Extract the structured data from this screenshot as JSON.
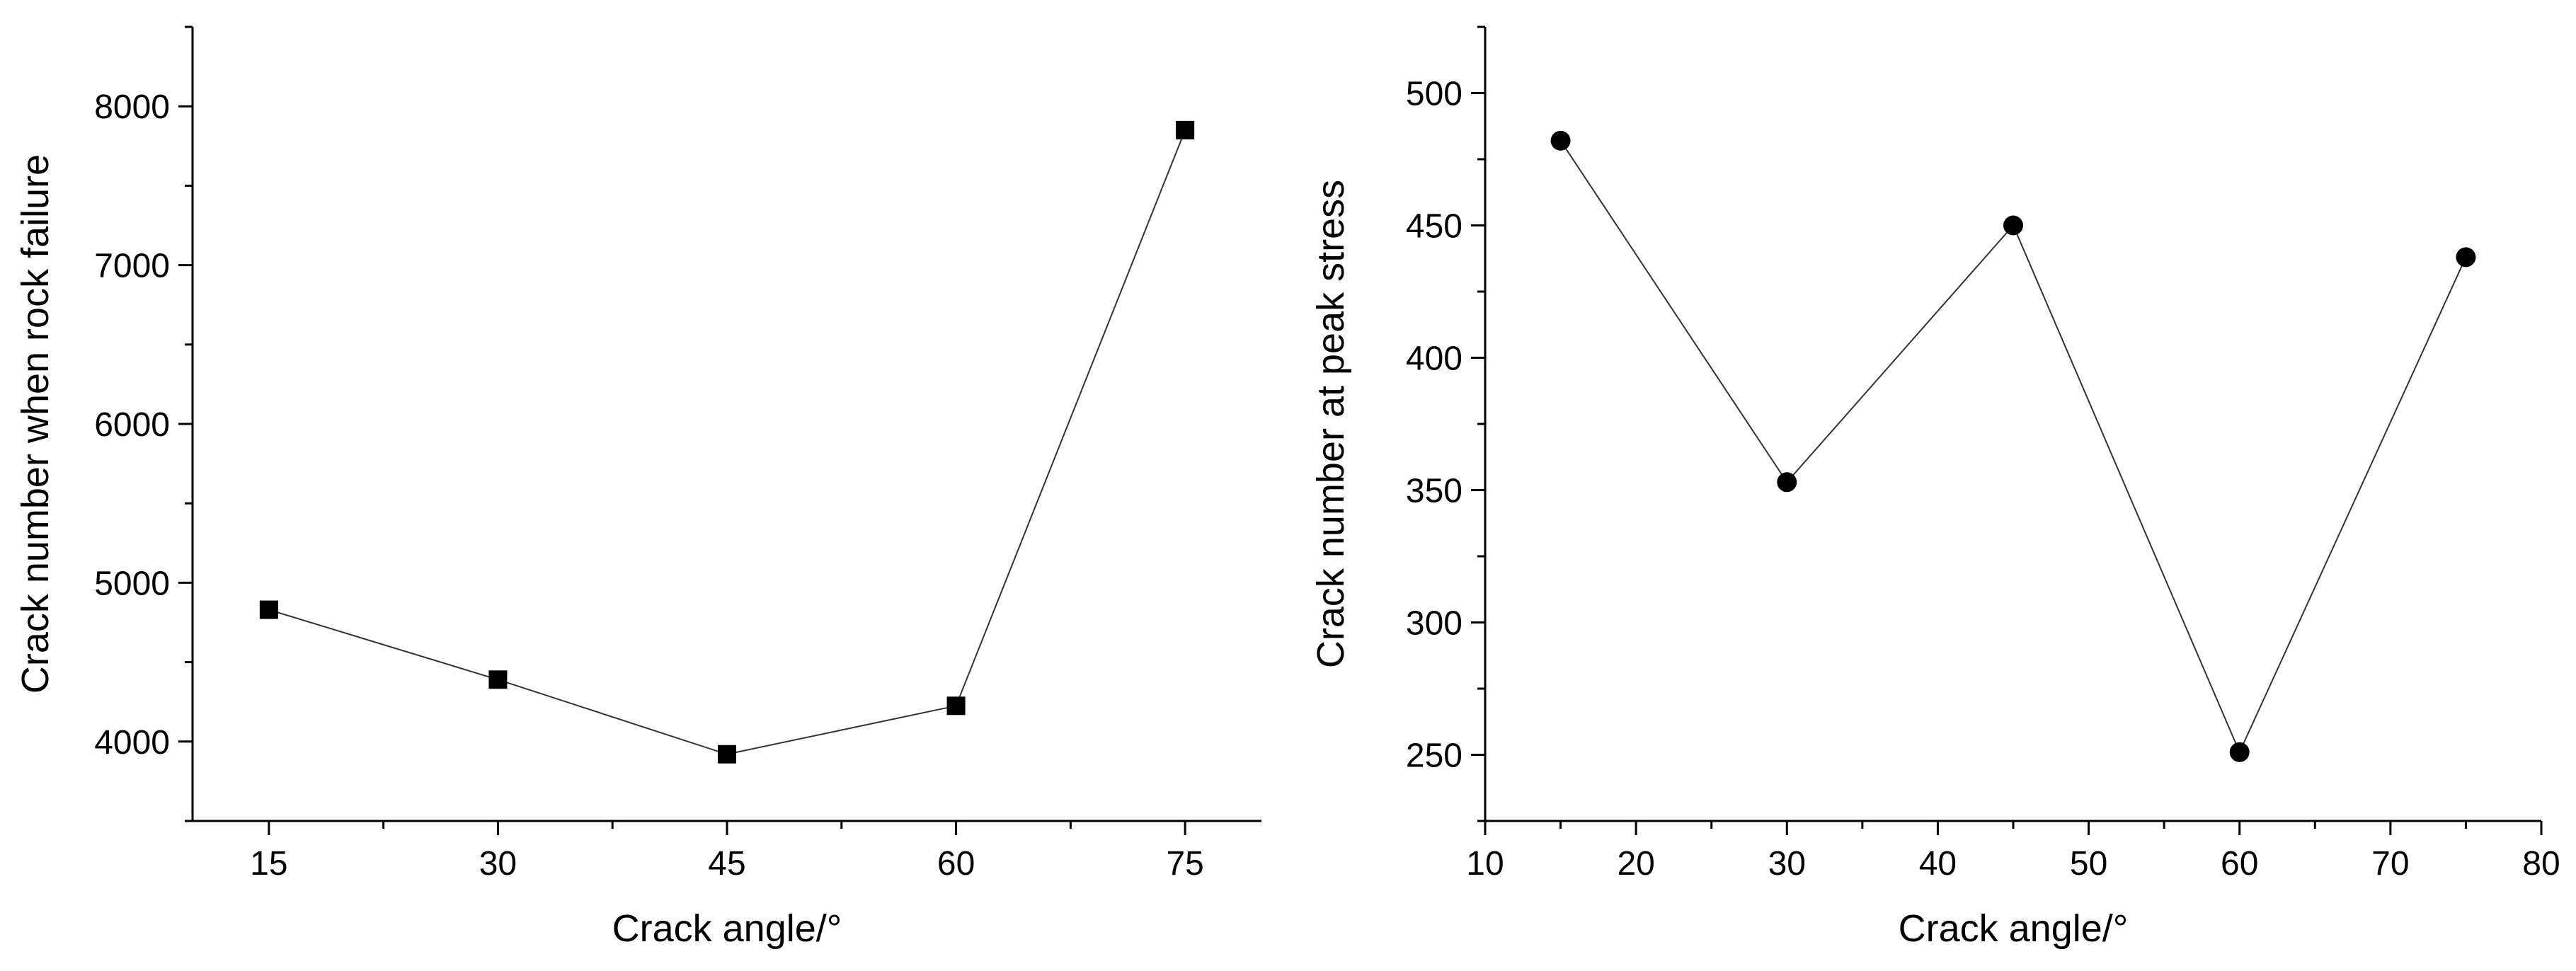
{
  "chart_data": [
    {
      "type": "line",
      "xlabel": "Crack angle/°",
      "ylabel": "Crack number when rock failure",
      "x": [
        15,
        30,
        45,
        60,
        75
      ],
      "series": [
        {
          "values": [
            4830,
            4390,
            3920,
            4225,
            7850
          ],
          "marker": "square"
        }
      ],
      "xlim": [
        10,
        80
      ],
      "ylim": [
        3500,
        8500
      ],
      "xticks": [
        15,
        30,
        45,
        60,
        75
      ],
      "yticks": [
        4000,
        5000,
        6000,
        7000,
        8000
      ],
      "grid": false,
      "legend": "none"
    },
    {
      "type": "line",
      "xlabel": "Crack angle/°",
      "ylabel": "Crack number at peak stress",
      "x": [
        15,
        30,
        45,
        60,
        75
      ],
      "series": [
        {
          "values": [
            482,
            353,
            450,
            251,
            438
          ],
          "marker": "circle"
        }
      ],
      "xlim": [
        10,
        80
      ],
      "ylim": [
        225,
        525
      ],
      "xticks": [
        10,
        20,
        30,
        40,
        50,
        60,
        70,
        80
      ],
      "yticks": [
        250,
        300,
        350,
        400,
        450,
        500
      ],
      "grid": false,
      "legend": "none"
    }
  ]
}
